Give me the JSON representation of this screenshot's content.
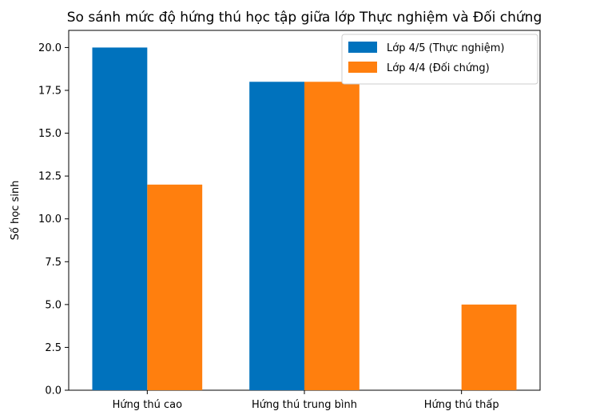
{
  "chart_data": {
    "type": "bar",
    "title": "So sánh mức độ hứng thú học tập giữa lớp Thực nghiệm và Đối chứng",
    "xlabel": "",
    "ylabel": "Số học sinh",
    "categories": [
      "Hứng thú cao",
      "Hứng thú trung bình",
      "Hứng thú thấp"
    ],
    "series": [
      {
        "name": "Lớp 4/5 (Thực nghiệm)",
        "values": [
          20,
          18,
          0
        ],
        "color": "#0072bd"
      },
      {
        "name": "Lớp 4/4 (Đối chứng)",
        "values": [
          12,
          18,
          5
        ],
        "color": "#ff7f0e"
      }
    ],
    "ylim": [
      0,
      21
    ],
    "yticks": [
      "0.0",
      "2.5",
      "5.0",
      "7.5",
      "10.0",
      "12.5",
      "15.0",
      "17.5",
      "20.0"
    ],
    "grid": false,
    "legend_position": "top-right"
  }
}
